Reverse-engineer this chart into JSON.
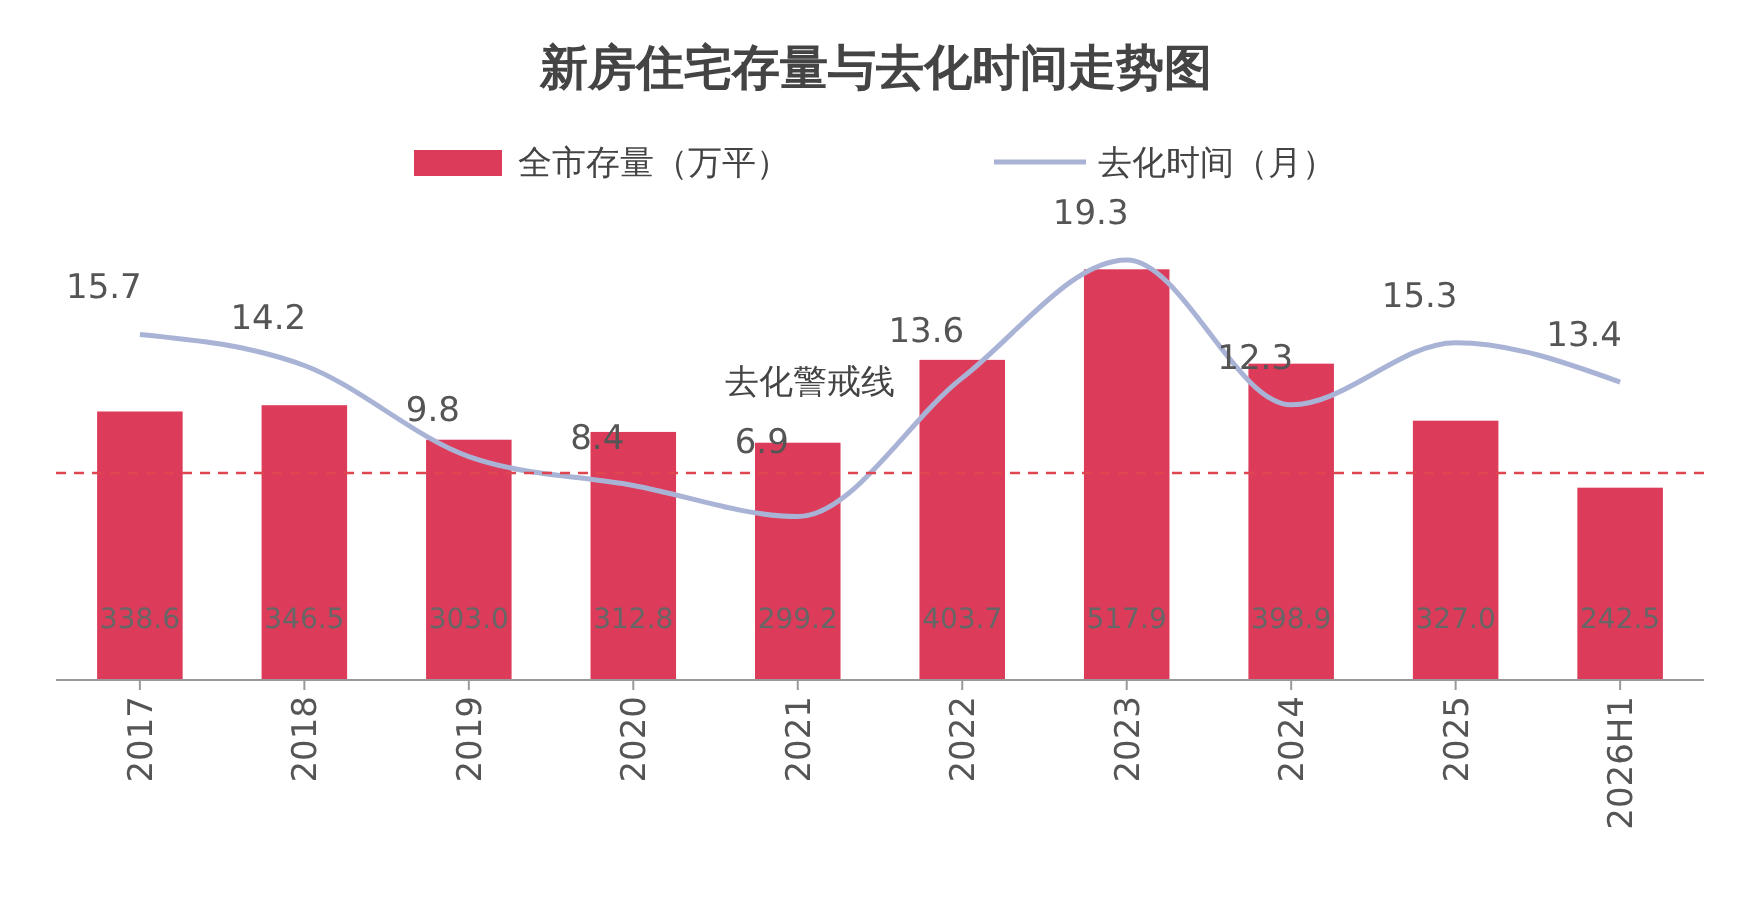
{
  "chart_data": {
    "type": "bar",
    "title": "新房住宅存量与去化时间走势图",
    "categories": [
      "2017",
      "2018",
      "2019",
      "2020",
      "2021",
      "2022",
      "2023",
      "2024",
      "2025",
      "2026H1"
    ],
    "series": [
      {
        "name": "全市存量（万平）",
        "color": "#dc3c5a",
        "values": [
          338.6,
          346.5,
          303.0,
          312.8,
          299.2,
          403.7,
          517.9,
          398.9,
          327.0,
          242.5
        ],
        "value_labels": [
          "338.6",
          "346.5",
          "303.0",
          "312.8",
          "299.2",
          "403.7",
          "517.9",
          "398.9",
          "327.0",
          "242.5"
        ]
      },
      {
        "name": "去化时间（月）",
        "type": "line",
        "axis": "y2",
        "color": "#a9b3d6",
        "values": [
          15.7,
          14.2,
          9.8,
          8.4,
          6.9,
          13.6,
          19.3,
          12.3,
          15.3,
          13.4
        ]
      }
    ],
    "ref_lines": [
      {
        "axis": "y2",
        "value": 9,
        "label": "去化警戒线",
        "color": "#e0464f",
        "line_style": "dashed"
      }
    ],
    "data_labels": true,
    "legend": "top",
    "grid": false,
    "tick_labels": "x",
    "marker": "none",
    "line_style": "solid"
  }
}
